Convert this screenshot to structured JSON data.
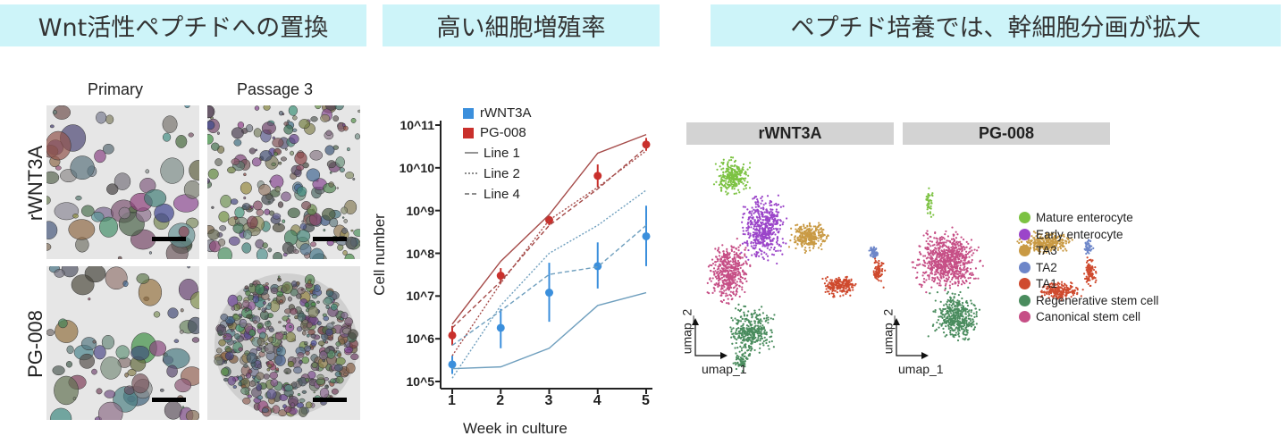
{
  "banners": [
    "Wnt活性ペプチドへの置換",
    "高い細胞増殖率",
    "ペプチド培養では、幹細胞分画が拡大"
  ],
  "micrographs": {
    "columns": [
      "Primary",
      "Passage 3"
    ],
    "rows": [
      "rWNT3A",
      "PG-008"
    ]
  },
  "chart_data": {
    "type": "line",
    "xlabel": "Week in culture",
    "ylabel": "Cell number",
    "x": [
      1,
      2,
      3,
      4,
      5
    ],
    "yscale": "log",
    "ylim": [
      100000,
      100000000000
    ],
    "ytick_labels": [
      "10^5",
      "10^6",
      "10^7",
      "10^8",
      "10^9",
      "10^10",
      "10^11"
    ],
    "legend": {
      "placement": "top-left",
      "conditions": [
        "rWNT3A",
        "PG-008"
      ],
      "lines": [
        "Line 1",
        "Line 2",
        "Line 4"
      ]
    },
    "colors": {
      "rWNT3A": "#3b8fdc",
      "PG-008": "#c9302c",
      "rWNT3A_line": "#6f9fbe",
      "PG-008_line": "#a54b49"
    },
    "series": [
      {
        "name": "rWNT3A",
        "kind": "mean",
        "values": [
          250000,
          1800000,
          12000000,
          50000000,
          250000000
        ],
        "err_low": [
          150000,
          600000,
          2500000,
          15000000,
          50000000
        ],
        "err_high": [
          400000,
          5000000,
          60000000,
          180000000,
          1300000000
        ]
      },
      {
        "name": "PG-008",
        "kind": "mean",
        "values": [
          1200000,
          30000000,
          600000000,
          6500000000,
          35000000000
        ],
        "err_low": [
          700000,
          20000000,
          450000000,
          3500000000,
          25000000000
        ],
        "err_high": [
          2000000,
          45000000,
          750000000,
          12000000000,
          50000000000
        ]
      },
      {
        "name": "rWNT3A Line 1",
        "kind": "solid",
        "values": [
          200000,
          220000,
          600000,
          6000000,
          12000000
        ]
      },
      {
        "name": "rWNT3A Line 2",
        "kind": "dotted",
        "values": [
          120000,
          6000000,
          100000000,
          450000000,
          3000000000
        ]
      },
      {
        "name": "rWNT3A Line 4",
        "kind": "dashed",
        "values": [
          700000,
          4500000,
          32000000,
          48000000,
          450000000
        ]
      },
      {
        "name": "PG-008 Line 1",
        "kind": "solid",
        "values": [
          2200000,
          65000000,
          800000000,
          22000000000,
          60000000000
        ]
      },
      {
        "name": "PG-008 Line 2",
        "kind": "dotted",
        "values": [
          400000,
          20000000,
          600000000,
          3500000000,
          25000000000
        ]
      },
      {
        "name": "PG-008 Line 4",
        "kind": "dashed",
        "values": [
          1800000,
          22000000,
          450000000,
          3200000000,
          30000000000
        ]
      }
    ]
  },
  "umap": {
    "panels": [
      "rWNT3A",
      "PG-008"
    ],
    "axis_x": "umap_1",
    "axis_y": "umap_2",
    "legend": [
      {
        "label": "Mature enterocyte",
        "color": "#7cc242"
      },
      {
        "label": "Early enterocyte",
        "color": "#9b45c9"
      },
      {
        "label": "TA3",
        "color": "#c99a44"
      },
      {
        "label": "TA2",
        "color": "#6d86c9"
      },
      {
        "label": "TA1",
        "color": "#cf4a2e"
      },
      {
        "label": "Regenerative stem cell",
        "color": "#4a8c5e"
      },
      {
        "label": "Canonical stem cell",
        "color": "#c64f86"
      }
    ]
  }
}
